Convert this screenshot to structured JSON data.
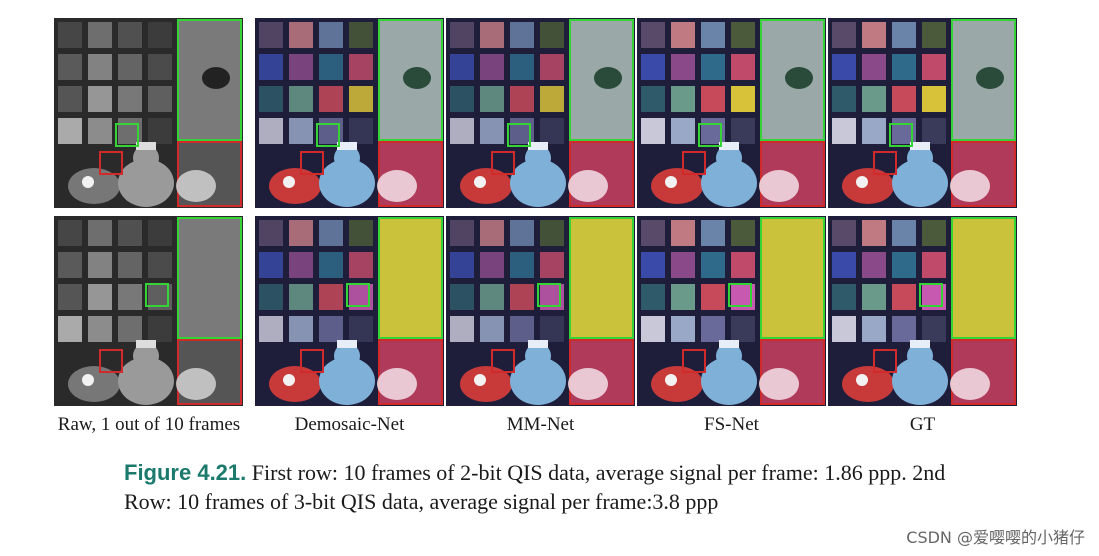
{
  "figure": {
    "columns": [
      {
        "id": "raw",
        "label": "Raw, 1 out of 10 frames",
        "style": "gray"
      },
      {
        "id": "demosaic",
        "label": "Demosaic-Net",
        "style": "color-soft"
      },
      {
        "id": "mmnet",
        "label": "MM-Net",
        "style": "color-soft"
      },
      {
        "id": "fsnet",
        "label": "FS-Net",
        "style": "color"
      },
      {
        "id": "gt",
        "label": "GT",
        "style": "color-clean"
      }
    ],
    "rows": [
      {
        "id": "row-2bit"
      },
      {
        "id": "row-3bit"
      }
    ],
    "highlight_colors": {
      "green": "#35d335",
      "red": "#d12a2a"
    }
  },
  "caption": {
    "heading": "Figure 4.21.",
    "body": "First row: 10 frames of 2-bit QIS data, average signal per frame: 1.86 ppp. 2nd Row: 10 frames of 3-bit QIS data, average signal per frame:3.8 ppp"
  },
  "watermark": "CSDN @爱嘤嘤的小猪仔"
}
